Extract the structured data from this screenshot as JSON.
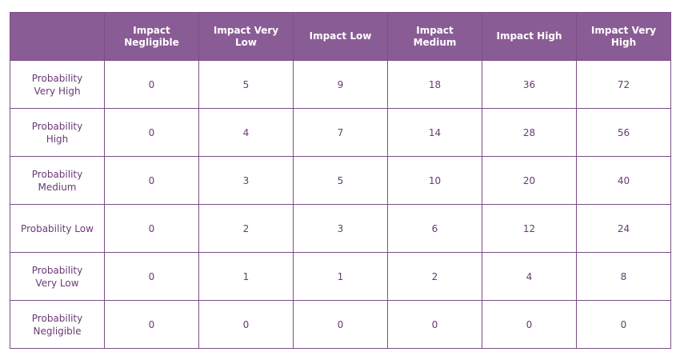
{
  "table": {
    "columns": [
      "Impact Negligible",
      "Impact Very Low",
      "Impact Low",
      "Impact Medium",
      "Impact High",
      "Impact Very High"
    ],
    "rows": [
      {
        "label": "Probability Very High",
        "values": [
          0,
          5,
          9,
          18,
          36,
          72
        ]
      },
      {
        "label": "Probability High",
        "values": [
          0,
          4,
          7,
          14,
          28,
          56
        ]
      },
      {
        "label": "Probability Medium",
        "values": [
          0,
          3,
          5,
          10,
          20,
          40
        ]
      },
      {
        "label": "Probability Low",
        "values": [
          0,
          2,
          3,
          6,
          12,
          24
        ]
      },
      {
        "label": "Probability Very Low",
        "values": [
          0,
          1,
          1,
          2,
          4,
          8
        ]
      },
      {
        "label": "Probability Negligible",
        "values": [
          0,
          0,
          0,
          0,
          0,
          0
        ]
      }
    ]
  }
}
